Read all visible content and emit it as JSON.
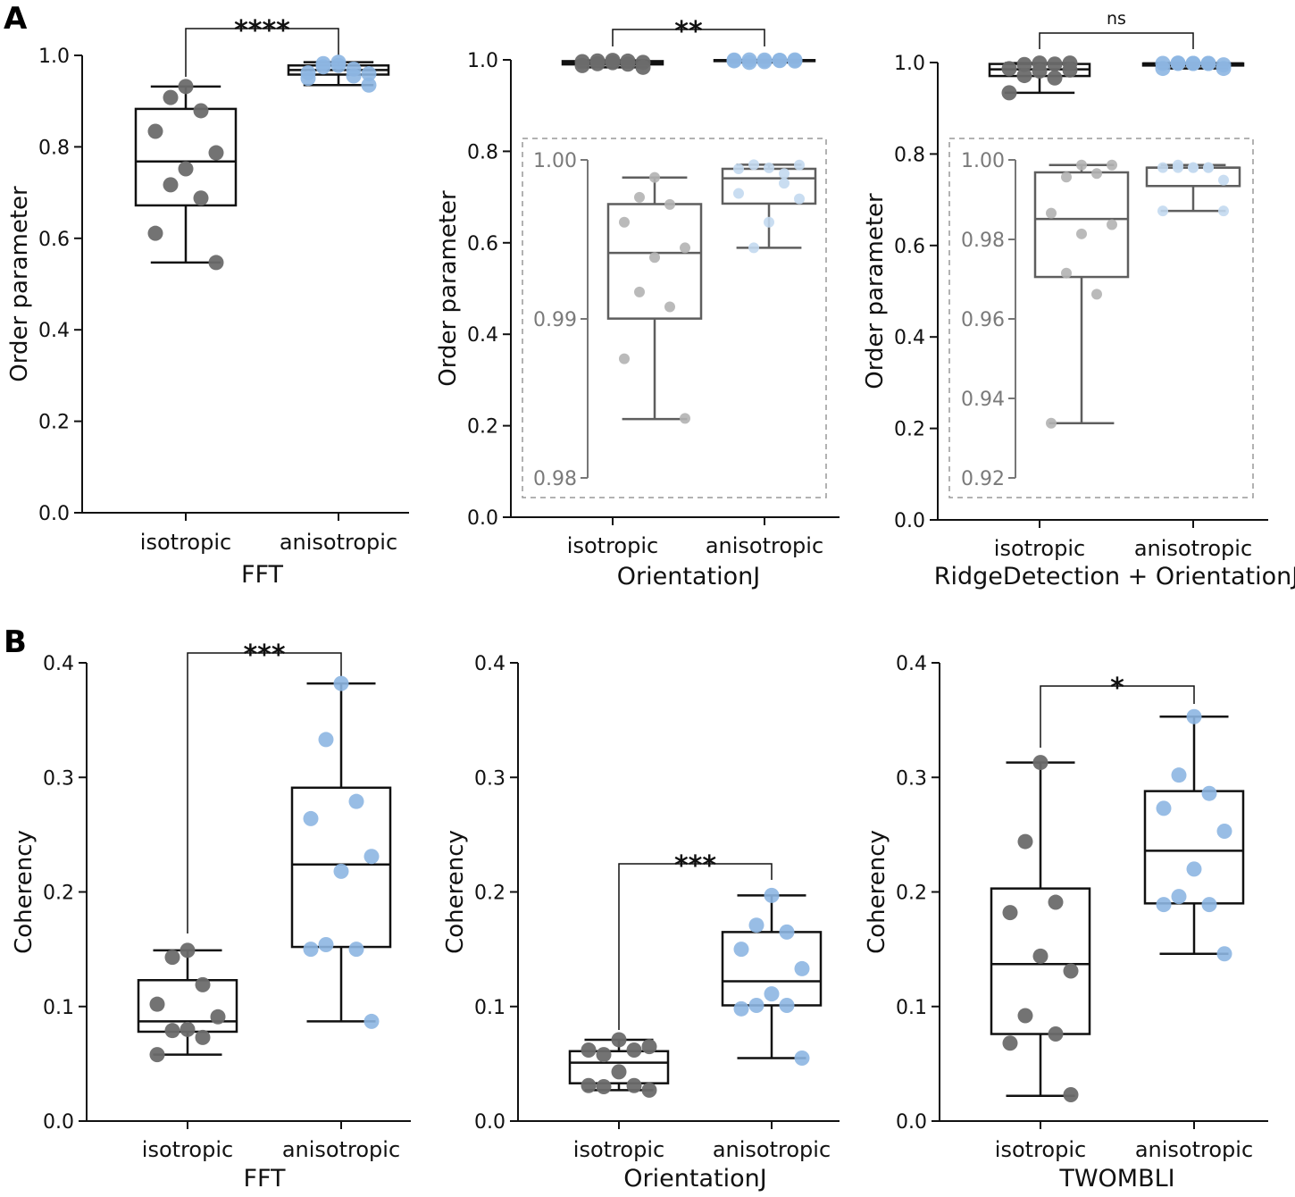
{
  "panel_labels": [
    "A",
    "B"
  ],
  "colors": {
    "isotropic": "#6b6b6b",
    "anisotropic": "#8db6e2",
    "isotropic_inset": "#b3b3b3",
    "anisotropic_inset": "#c3d9f0",
    "box": "#111111",
    "inset_box": "#5e5e5e"
  },
  "chart_data": [
    {
      "type": "box",
      "panel": "A",
      "xlabel": "FFT",
      "ylabel": "Order parameter",
      "ylim": [
        0,
        1
      ],
      "yticks": [
        "0.0",
        "0.2",
        "0.4",
        "0.6",
        "0.8",
        "1.0"
      ],
      "ytick_values": [
        0,
        0.2,
        0.4,
        0.6,
        0.8,
        1.0
      ],
      "categories": [
        "isotropic",
        "anisotropic"
      ],
      "significance": "****",
      "series": [
        {
          "name": "isotropic",
          "points": [
            0.932,
            0.908,
            0.879,
            0.834,
            0.787,
            0.752,
            0.717,
            0.688,
            0.611,
            0.547
          ],
          "box": {
            "whisker_low": 0.547,
            "q1": 0.672,
            "median": 0.768,
            "q3": 0.883,
            "whisker_high": 0.932
          }
        },
        {
          "name": "anisotropic",
          "points": [
            0.985,
            0.975,
            0.97,
            0.962,
            0.96,
            0.978,
            0.982,
            0.955,
            0.95,
            0.935
          ],
          "box": {
            "whisker_low": 0.935,
            "q1": 0.958,
            "median": 0.968,
            "q3": 0.978,
            "whisker_high": 0.985
          }
        }
      ]
    },
    {
      "type": "box",
      "panel": "A",
      "xlabel": "OrientationJ",
      "ylabel": "Order parameter",
      "ylim": [
        0,
        1
      ],
      "yticks": [
        "0.0",
        "0.2",
        "0.4",
        "0.6",
        "0.8",
        "1.0"
      ],
      "ytick_values": [
        0,
        0.2,
        0.4,
        0.6,
        0.8,
        1.0
      ],
      "categories": [
        "isotropic",
        "anisotropic"
      ],
      "significance": "**",
      "inset": {
        "ylim": [
          0.98,
          1.0
        ],
        "yticks": [
          "0.98",
          "0.99",
          "1.00"
        ],
        "ytick_values": [
          0.98,
          0.99,
          1.0
        ]
      },
      "series": [
        {
          "name": "isotropic",
          "points": [
            0.9989,
            0.99765,
            0.9972,
            0.99608,
            0.99447,
            0.99386,
            0.99169,
            0.99076,
            0.98749,
            0.98374
          ],
          "box": {
            "whisker_low": 0.9837,
            "q1": 0.99002,
            "median": 0.99415,
            "q3": 0.99722,
            "whisker_high": 0.99889
          }
        },
        {
          "name": "anisotropic",
          "points": [
            0.9995,
            0.9997,
            0.99853,
            0.99944,
            0.99755,
            0.99608,
            0.99447,
            0.99914,
            0.99789,
            0.99968
          ],
          "box": {
            "whisker_low": 0.99447,
            "q1": 0.99725,
            "median": 0.99884,
            "q3": 0.99944,
            "whisker_high": 0.9997
          }
        }
      ]
    },
    {
      "type": "box",
      "panel": "A",
      "xlabel": "RidgeDetection + OrientationJ",
      "ylabel": "Order parameter",
      "ylim": [
        0,
        1
      ],
      "yticks": [
        "0.0",
        "0.2",
        "0.4",
        "0.6",
        "0.8",
        "1.0"
      ],
      "ytick_values": [
        0,
        0.2,
        0.4,
        0.6,
        0.8,
        1.0
      ],
      "categories": [
        "isotropic",
        "anisotropic"
      ],
      "significance": "ns",
      "inset": {
        "ylim": [
          0.92,
          1.0
        ],
        "yticks": [
          "0.92",
          "0.94",
          "0.96",
          "0.98",
          "1.00"
        ],
        "ytick_values": [
          0.92,
          0.94,
          0.96,
          0.98,
          1.0
        ]
      },
      "series": [
        {
          "name": "isotropic",
          "points": [
            0.99872,
            0.99567,
            0.99656,
            0.98661,
            0.9837,
            0.98139,
            0.97152,
            0.96621,
            0.93377,
            0.99872
          ],
          "box": {
            "whisker_low": 0.93377,
            "q1": 0.97055,
            "median": 0.98513,
            "q3": 0.99686,
            "whisker_high": 0.99872
          }
        },
        {
          "name": "anisotropic",
          "points": [
            0.99805,
            0.99872,
            0.99805,
            0.99805,
            0.99491,
            0.99805,
            0.99805,
            0.99805,
            0.98715,
            0.98715
          ],
          "box": {
            "whisker_low": 0.98715,
            "q1": 0.99343,
            "median": 0.99805,
            "q3": 0.99805,
            "whisker_high": 0.99872
          }
        }
      ]
    },
    {
      "type": "box",
      "panel": "B",
      "xlabel": "FFT",
      "ylabel": "Coherency",
      "ylim": [
        0,
        0.4
      ],
      "yticks": [
        "0.0",
        "0.1",
        "0.2",
        "0.3",
        "0.4"
      ],
      "ytick_values": [
        0,
        0.1,
        0.2,
        0.3,
        0.4
      ],
      "categories": [
        "isotropic",
        "anisotropic"
      ],
      "significance": "***",
      "series": [
        {
          "name": "isotropic",
          "points": [
            0.149,
            0.143,
            0.119,
            0.102,
            0.091,
            0.08,
            0.079,
            0.073,
            0.058
          ],
          "box": {
            "whisker_low": 0.058,
            "q1": 0.078,
            "median": 0.087,
            "q3": 0.123,
            "whisker_high": 0.149
          }
        },
        {
          "name": "anisotropic",
          "points": [
            0.382,
            0.333,
            0.279,
            0.264,
            0.231,
            0.218,
            0.154,
            0.15,
            0.15,
            0.087
          ],
          "box": {
            "whisker_low": 0.087,
            "q1": 0.152,
            "median": 0.224,
            "q3": 0.291,
            "whisker_high": 0.382
          }
        }
      ]
    },
    {
      "type": "box",
      "panel": "B",
      "xlabel": "OrientationJ",
      "ylabel": "Coherency",
      "ylim": [
        0,
        0.4
      ],
      "yticks": [
        "0.0",
        "0.1",
        "0.2",
        "0.3",
        "0.4"
      ],
      "ytick_values": [
        0,
        0.1,
        0.2,
        0.3,
        0.4
      ],
      "categories": [
        "isotropic",
        "anisotropic"
      ],
      "significance": "***",
      "series": [
        {
          "name": "isotropic",
          "points": [
            0.071,
            0.058,
            0.062,
            0.062,
            0.065,
            0.043,
            0.03,
            0.031,
            0.031,
            0.027
          ],
          "box": {
            "whisker_low": 0.027,
            "q1": 0.033,
            "median": 0.051,
            "q3": 0.061,
            "whisker_high": 0.071
          }
        },
        {
          "name": "anisotropic",
          "points": [
            0.197,
            0.171,
            0.165,
            0.15,
            0.133,
            0.111,
            0.101,
            0.101,
            0.098,
            0.055
          ],
          "box": {
            "whisker_low": 0.055,
            "q1": 0.101,
            "median": 0.122,
            "q3": 0.165,
            "whisker_high": 0.197
          }
        }
      ]
    },
    {
      "type": "box",
      "panel": "B",
      "xlabel": "TWOMBLI",
      "ylabel": "Coherency",
      "ylim": [
        0,
        0.4
      ],
      "yticks": [
        "0.0",
        "0.1",
        "0.2",
        "0.3",
        "0.4"
      ],
      "ytick_values": [
        0,
        0.1,
        0.2,
        0.3,
        0.4
      ],
      "categories": [
        "isotropic",
        "anisotropic"
      ],
      "significance": "*",
      "series": [
        {
          "name": "isotropic",
          "points": [
            0.313,
            0.244,
            0.191,
            0.182,
            0.131,
            0.144,
            0.092,
            0.076,
            0.068,
            0.023
          ],
          "box": {
            "whisker_low": 0.022,
            "q1": 0.076,
            "median": 0.137,
            "q3": 0.203,
            "whisker_high": 0.313
          }
        },
        {
          "name": "anisotropic",
          "points": [
            0.353,
            0.302,
            0.286,
            0.273,
            0.253,
            0.22,
            0.196,
            0.189,
            0.189,
            0.146
          ],
          "box": {
            "whisker_low": 0.146,
            "q1": 0.19,
            "median": 0.236,
            "q3": 0.288,
            "whisker_high": 0.353
          }
        }
      ]
    }
  ]
}
